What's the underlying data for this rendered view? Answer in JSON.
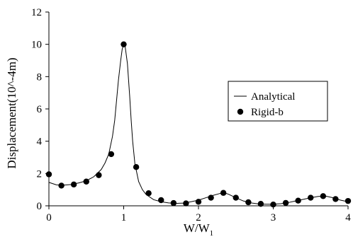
{
  "chart_data": {
    "type": "line",
    "title": "",
    "xlabel_main": "W/W",
    "xlabel_sub": "1",
    "ylabel": "Displacement(10^-4m)",
    "xlim": [
      0,
      4
    ],
    "ylim": [
      0,
      12
    ],
    "xticks": [
      "0",
      "1",
      "2",
      "3",
      "4"
    ],
    "yticks": [
      "0",
      "2",
      "4",
      "6",
      "8",
      "10",
      "12"
    ],
    "grid": false,
    "legend_position": "right",
    "series": [
      {
        "name": "Analytical",
        "style": "line",
        "color": "#000000",
        "x": [
          0,
          0.1,
          0.2,
          0.3,
          0.4,
          0.5,
          0.6,
          0.7,
          0.75,
          0.8,
          0.85,
          0.88,
          0.9,
          0.93,
          0.96,
          0.98,
          1.0,
          1.02,
          1.05,
          1.08,
          1.1,
          1.12,
          1.15,
          1.2,
          1.25,
          1.3,
          1.4,
          1.5,
          1.6,
          1.7,
          1.8,
          1.9,
          2.0,
          2.1,
          2.2,
          2.3,
          2.35,
          2.4,
          2.5,
          2.6,
          2.7,
          2.8,
          2.9,
          3.0,
          3.1,
          3.2,
          3.3,
          3.4,
          3.5,
          3.6,
          3.7,
          3.8,
          3.9,
          4.0
        ],
        "y": [
          1.45,
          1.3,
          1.28,
          1.32,
          1.42,
          1.55,
          1.8,
          2.25,
          2.65,
          3.2,
          4.3,
          5.3,
          6.3,
          7.8,
          9.0,
          9.7,
          10.0,
          9.85,
          8.8,
          6.8,
          5.3,
          4.0,
          2.6,
          1.5,
          1.0,
          0.7,
          0.38,
          0.25,
          0.18,
          0.15,
          0.17,
          0.25,
          0.35,
          0.5,
          0.65,
          0.78,
          0.8,
          0.72,
          0.5,
          0.3,
          0.18,
          0.12,
          0.1,
          0.1,
          0.13,
          0.2,
          0.3,
          0.4,
          0.5,
          0.58,
          0.6,
          0.5,
          0.35,
          0.25
        ]
      },
      {
        "name": "Rigid-b",
        "style": "marker",
        "color": "#000000",
        "x": [
          0,
          0.167,
          0.333,
          0.5,
          0.667,
          0.833,
          1.0,
          1.167,
          1.333,
          1.5,
          1.667,
          1.833,
          2.0,
          2.167,
          2.333,
          2.5,
          2.667,
          2.833,
          3.0,
          3.167,
          3.333,
          3.5,
          3.667,
          3.833,
          4.0
        ],
        "y": [
          1.95,
          1.25,
          1.32,
          1.5,
          1.9,
          3.2,
          10.0,
          2.4,
          0.78,
          0.35,
          0.17,
          0.15,
          0.25,
          0.5,
          0.8,
          0.5,
          0.22,
          0.12,
          0.08,
          0.18,
          0.32,
          0.5,
          0.6,
          0.42,
          0.3
        ]
      }
    ]
  }
}
